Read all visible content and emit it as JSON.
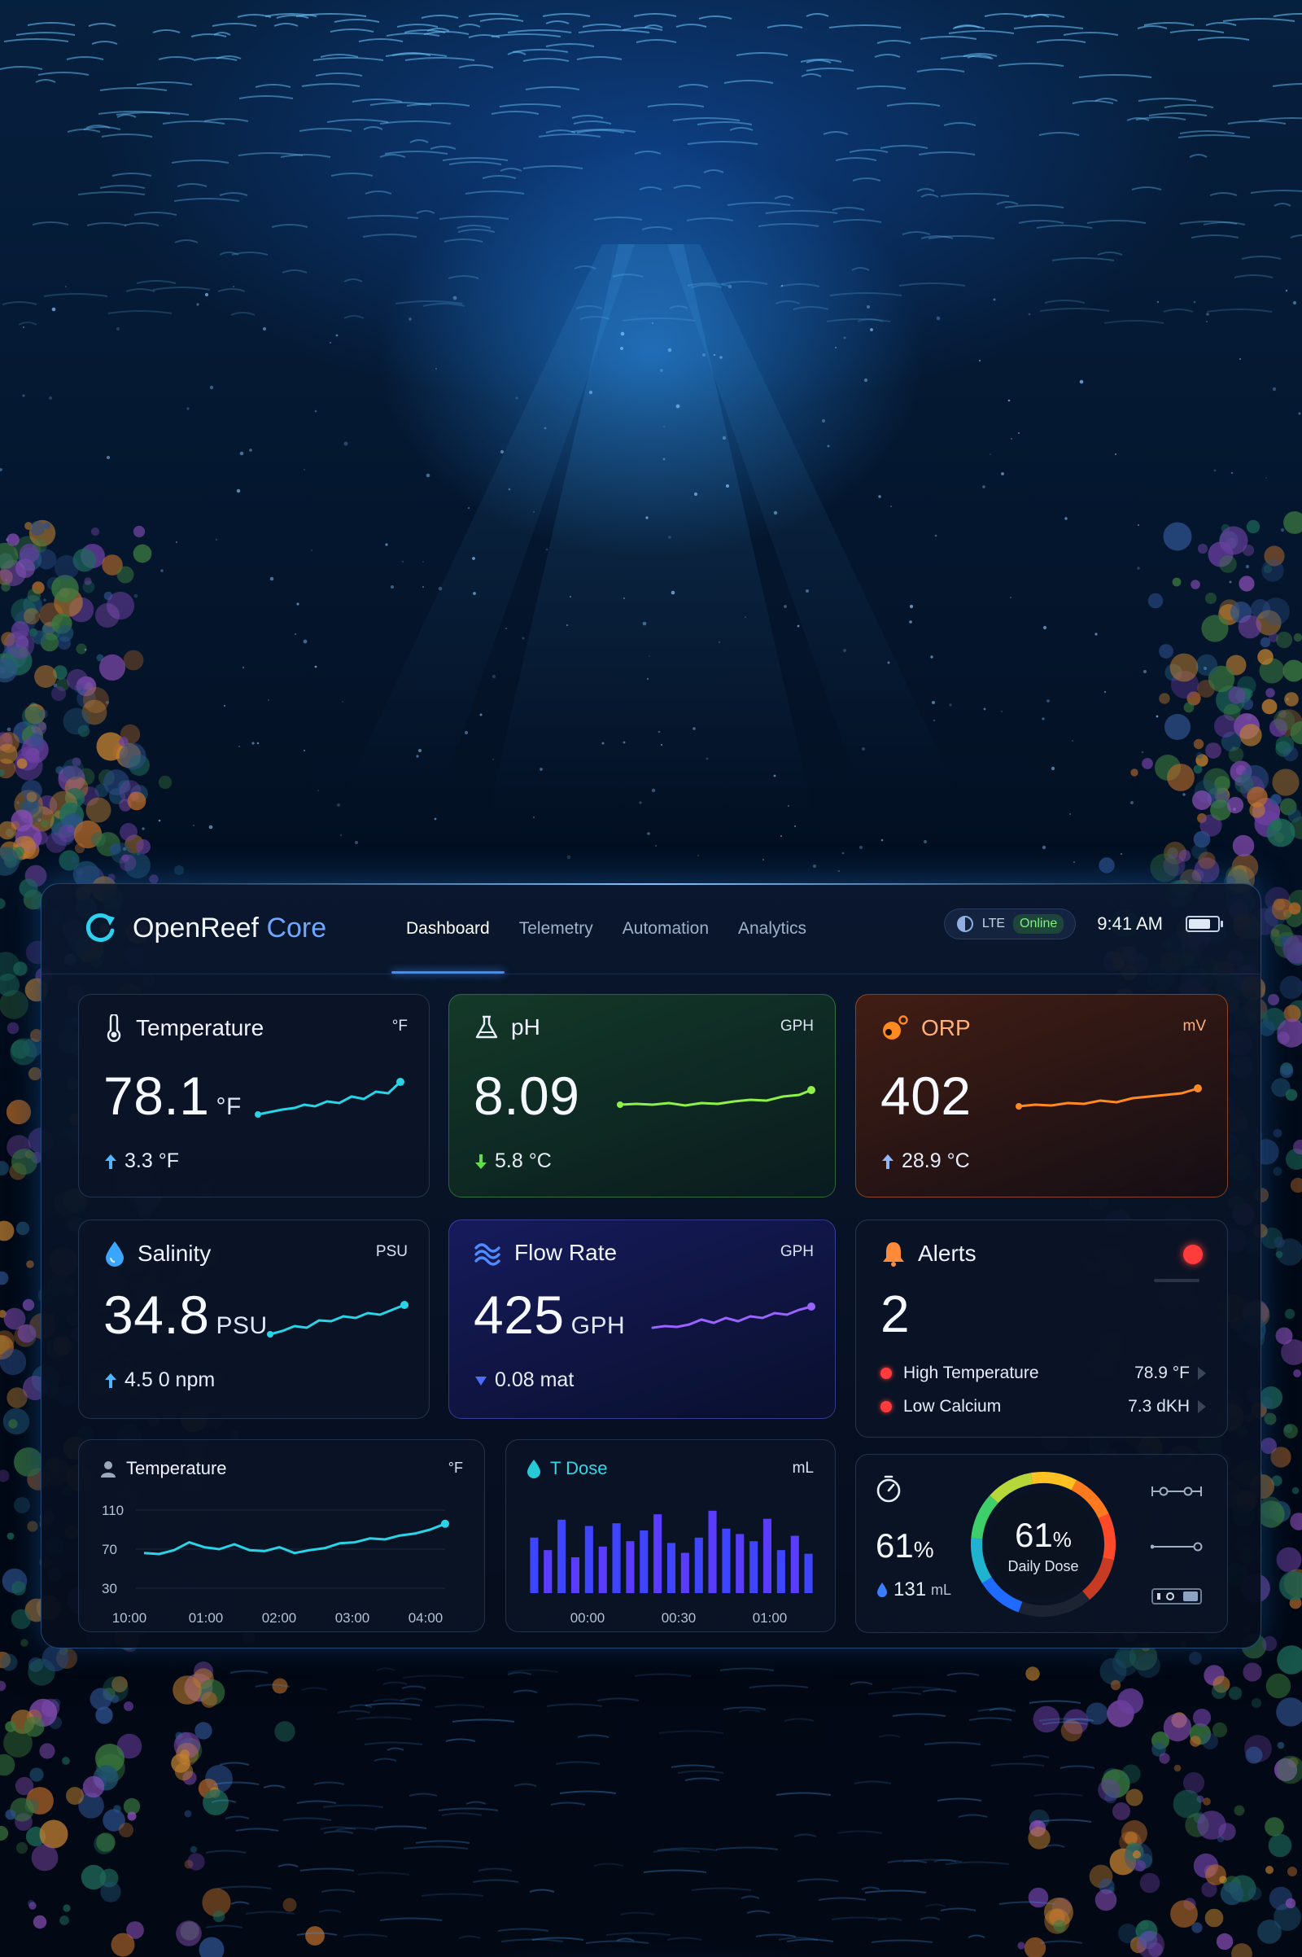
{
  "app": {
    "brand_primary": "OpenReef",
    "brand_accent": "Core"
  },
  "nav": [
    {
      "label": "Dashboard",
      "active": true
    },
    {
      "label": "Telemetry",
      "active": false
    },
    {
      "label": "Automation",
      "active": false
    },
    {
      "label": "Analytics",
      "active": false
    }
  ],
  "status": {
    "network": "LTE",
    "connection": "Online",
    "time": "9:41 AM",
    "battery_level": 0.86
  },
  "colors": {
    "accent": "#3d8bff",
    "temperature": "#28d4e6",
    "ph": "#8ff04a",
    "orp": "#ff8a22",
    "flow": "#9a62ff",
    "alert": "#ff3b3b"
  },
  "cards": {
    "temperature": {
      "icon": "thermometer-icon",
      "title": "Temperature",
      "unit": "°F",
      "value": "78.1",
      "value_unit": "°F",
      "delta_icon": "arrow-up-icon",
      "delta": "3.3 °F"
    },
    "ph": {
      "icon": "flask-icon",
      "title": "pH",
      "unit": "GPH",
      "value": "8.09",
      "value_unit": "",
      "delta_icon": "arrow-down-icon",
      "delta": "5.8 °C"
    },
    "orp": {
      "icon": "orp-icon",
      "title": "ORP",
      "unit": "mV",
      "value": "402",
      "value_unit": "",
      "delta_icon": "arrow-up-icon",
      "delta": "28.9 °C"
    },
    "salinity": {
      "icon": "water-drop-icon",
      "title": "Salinity",
      "unit": "PSU",
      "value": "34.8",
      "value_unit": "PSU",
      "delta_icon": "arrow-up-icon",
      "delta": "4.5 0 npm"
    },
    "flow": {
      "icon": "waves-icon",
      "title": "Flow Rate",
      "unit": "GPH",
      "value": "425",
      "value_unit": "GPH",
      "delta_icon": "triangle-down-icon",
      "delta": "0.08 mat"
    },
    "alerts": {
      "icon": "bell-icon",
      "title": "Alerts",
      "count": "2",
      "items": [
        {
          "label": "High Temperature",
          "value": "78.9 °F"
        },
        {
          "label": "Low Calcium",
          "value": "7.3 dKH"
        }
      ]
    }
  },
  "temp_chart": {
    "title": "Temperature",
    "unit": "°F",
    "y_ticks": [
      "110",
      "70",
      "30"
    ],
    "x_ticks": [
      "10:00",
      "01:00",
      "02:00",
      "03:00",
      "04:00"
    ]
  },
  "dose_chart": {
    "title": "T Dose",
    "unit": "mL",
    "x_ticks": [
      "00:00",
      "00:30",
      "01:00"
    ]
  },
  "dose_summary": {
    "icon": "timer-icon",
    "percent": "61",
    "percent_sign": "%",
    "volume": "131",
    "volume_unit": "mL",
    "gauge_value": "61",
    "gauge_sign": "%",
    "gauge_label": "Daily Dose",
    "gauge_fraction": 0.61
  },
  "chart_data": [
    {
      "type": "line",
      "title": "Temperature",
      "ylabel": "°F",
      "ylim": [
        30,
        110
      ],
      "x": [
        "10:00",
        "",
        "",
        "",
        "",
        "01:00",
        "",
        "",
        "",
        "",
        "02:00",
        "",
        "",
        "",
        "",
        "03:00",
        "",
        "",
        "",
        "",
        "04:00"
      ],
      "series": [
        {
          "values": [
            66,
            65,
            69,
            77,
            72,
            70,
            75,
            69,
            68,
            72,
            66,
            69,
            71,
            76,
            77,
            81,
            80,
            84,
            86,
            90,
            96
          ]
        }
      ]
    },
    {
      "type": "bar",
      "title": "T Dose",
      "ylabel": "mL",
      "categories": [
        "00:00",
        "",
        "",
        "",
        "",
        "",
        "",
        "",
        "00:30",
        "",
        "",
        "",
        "",
        "",
        "",
        "",
        "01:00",
        "",
        "",
        "",
        ""
      ],
      "series": [
        {
          "values": [
            62,
            48,
            82,
            40,
            75,
            52,
            78,
            58,
            70,
            88,
            56,
            45,
            62,
            92,
            72,
            66,
            58,
            83,
            48,
            64,
            44
          ]
        }
      ]
    }
  ]
}
